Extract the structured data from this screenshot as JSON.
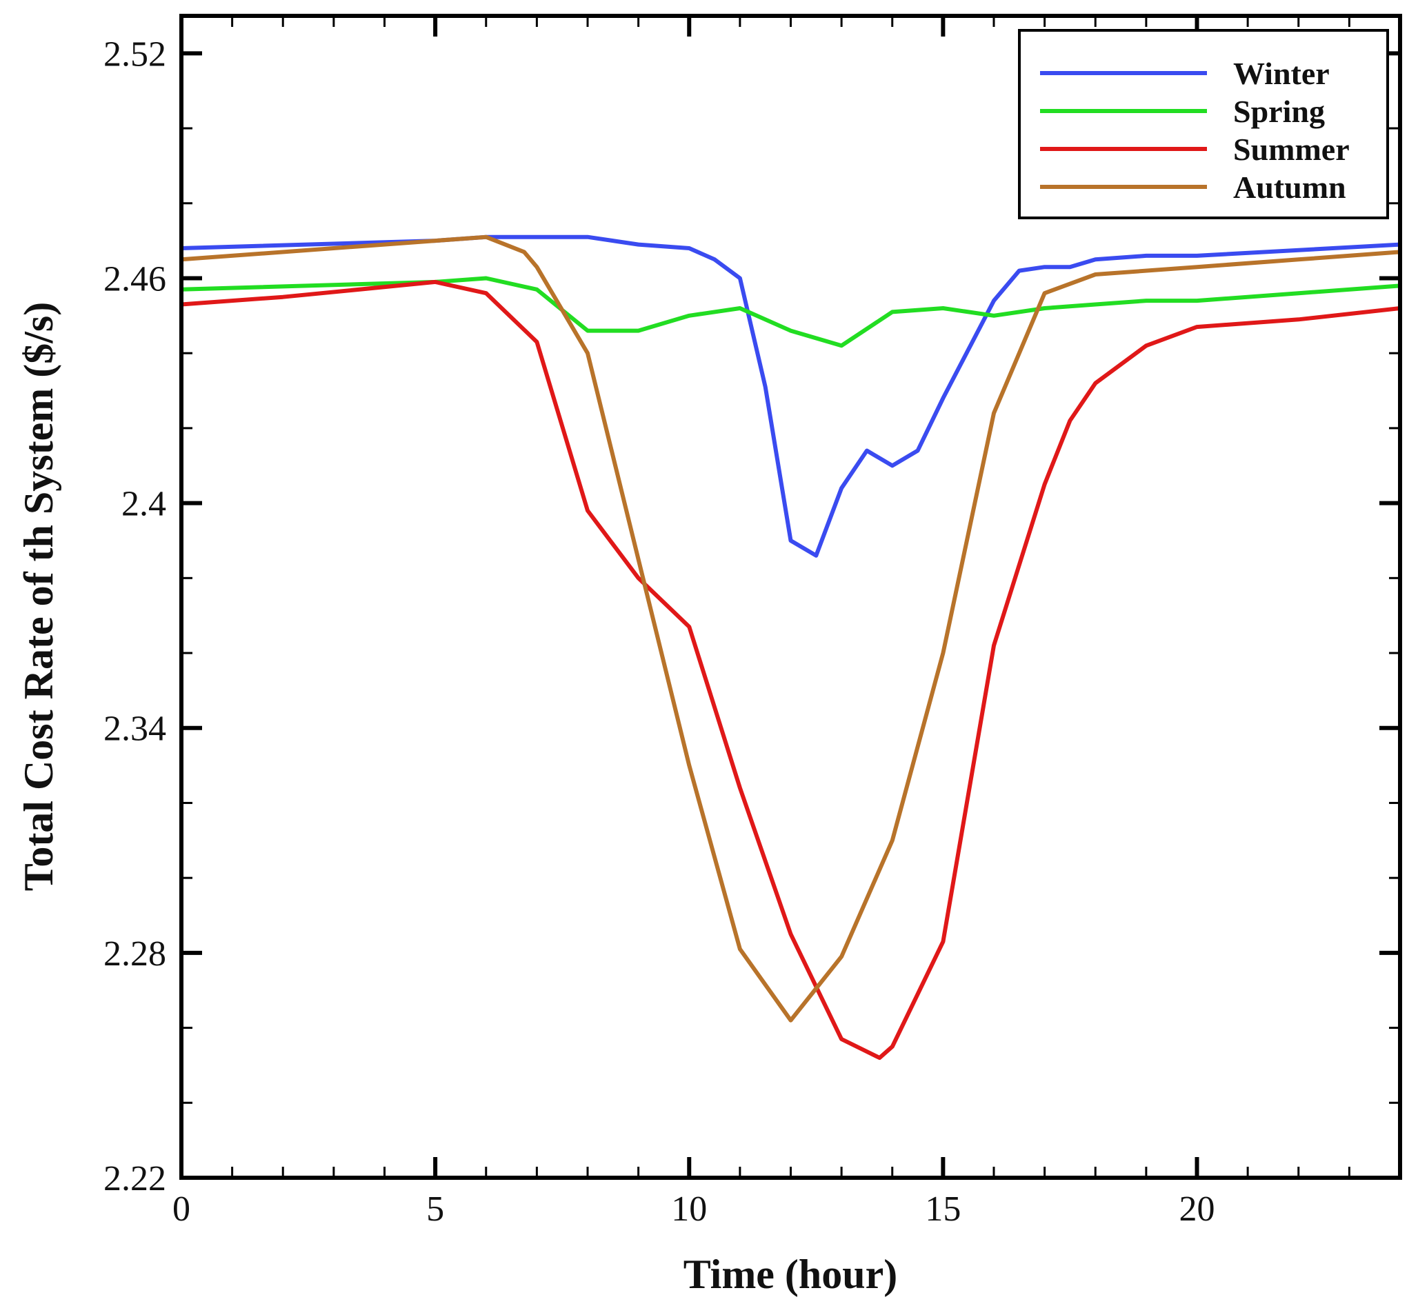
{
  "chart_data": {
    "type": "line",
    "title": "",
    "xlabel": "Time (hour)",
    "ylabel": "Total Cost Rate of th System ($/s)",
    "xlim": [
      0,
      24
    ],
    "ylim": [
      2.22,
      2.53
    ],
    "xticks": [
      0,
      5,
      10,
      15,
      20
    ],
    "xtick_labels": [
      "0",
      "5",
      "10",
      "15",
      "20"
    ],
    "yticks": [
      2.22,
      2.28,
      2.34,
      2.4,
      2.46,
      2.52
    ],
    "ytick_labels": [
      "2.22",
      "2.28",
      "2.34",
      "2.4",
      "2.46",
      "2.52"
    ],
    "grid": false,
    "legend_position": "top-right",
    "series": [
      {
        "name": "Winter",
        "color": "#3a4bf0",
        "x": [
          0,
          5,
          6,
          7,
          8,
          9,
          10,
          10.5,
          11,
          11.5,
          12,
          12.5,
          13,
          13.5,
          14,
          14.5,
          15,
          16,
          16.5,
          17,
          17.5,
          18,
          19,
          20,
          24
        ],
        "y": [
          2.468,
          2.47,
          2.471,
          2.471,
          2.471,
          2.469,
          2.468,
          2.465,
          2.46,
          2.431,
          2.39,
          2.386,
          2.404,
          2.414,
          2.41,
          2.414,
          2.428,
          2.454,
          2.462,
          2.463,
          2.463,
          2.465,
          2.466,
          2.466,
          2.469
        ]
      },
      {
        "name": "Spring",
        "color": "#22dd22",
        "x": [
          0,
          5,
          6,
          7,
          8,
          9,
          10,
          11,
          12,
          13,
          14,
          15,
          16,
          17,
          18,
          19,
          20,
          22,
          24
        ],
        "y": [
          2.457,
          2.459,
          2.46,
          2.457,
          2.446,
          2.446,
          2.45,
          2.452,
          2.446,
          2.442,
          2.451,
          2.452,
          2.45,
          2.452,
          2.453,
          2.454,
          2.454,
          2.456,
          2.458
        ]
      },
      {
        "name": "Summer",
        "color": "#e01818",
        "x": [
          0,
          2,
          5,
          6,
          7,
          8,
          9,
          10,
          11,
          12,
          13,
          13.75,
          14,
          15,
          16,
          17,
          17.5,
          18,
          19,
          20,
          22,
          24
        ],
        "y": [
          2.453,
          2.455,
          2.459,
          2.456,
          2.443,
          2.398,
          2.38,
          2.367,
          2.324,
          2.285,
          2.257,
          2.252,
          2.255,
          2.283,
          2.362,
          2.405,
          2.422,
          2.432,
          2.442,
          2.447,
          2.449,
          2.452
        ]
      },
      {
        "name": "Autumn",
        "color": "#b8732a",
        "x": [
          0,
          5,
          6,
          6.75,
          7,
          8,
          9,
          10,
          11,
          12,
          13,
          14,
          15,
          16,
          17,
          18,
          20,
          22,
          24
        ],
        "y": [
          2.465,
          2.47,
          2.471,
          2.467,
          2.463,
          2.44,
          2.385,
          2.33,
          2.281,
          2.262,
          2.279,
          2.31,
          2.36,
          2.424,
          2.456,
          2.461,
          2.463,
          2.465,
          2.467
        ]
      }
    ]
  }
}
